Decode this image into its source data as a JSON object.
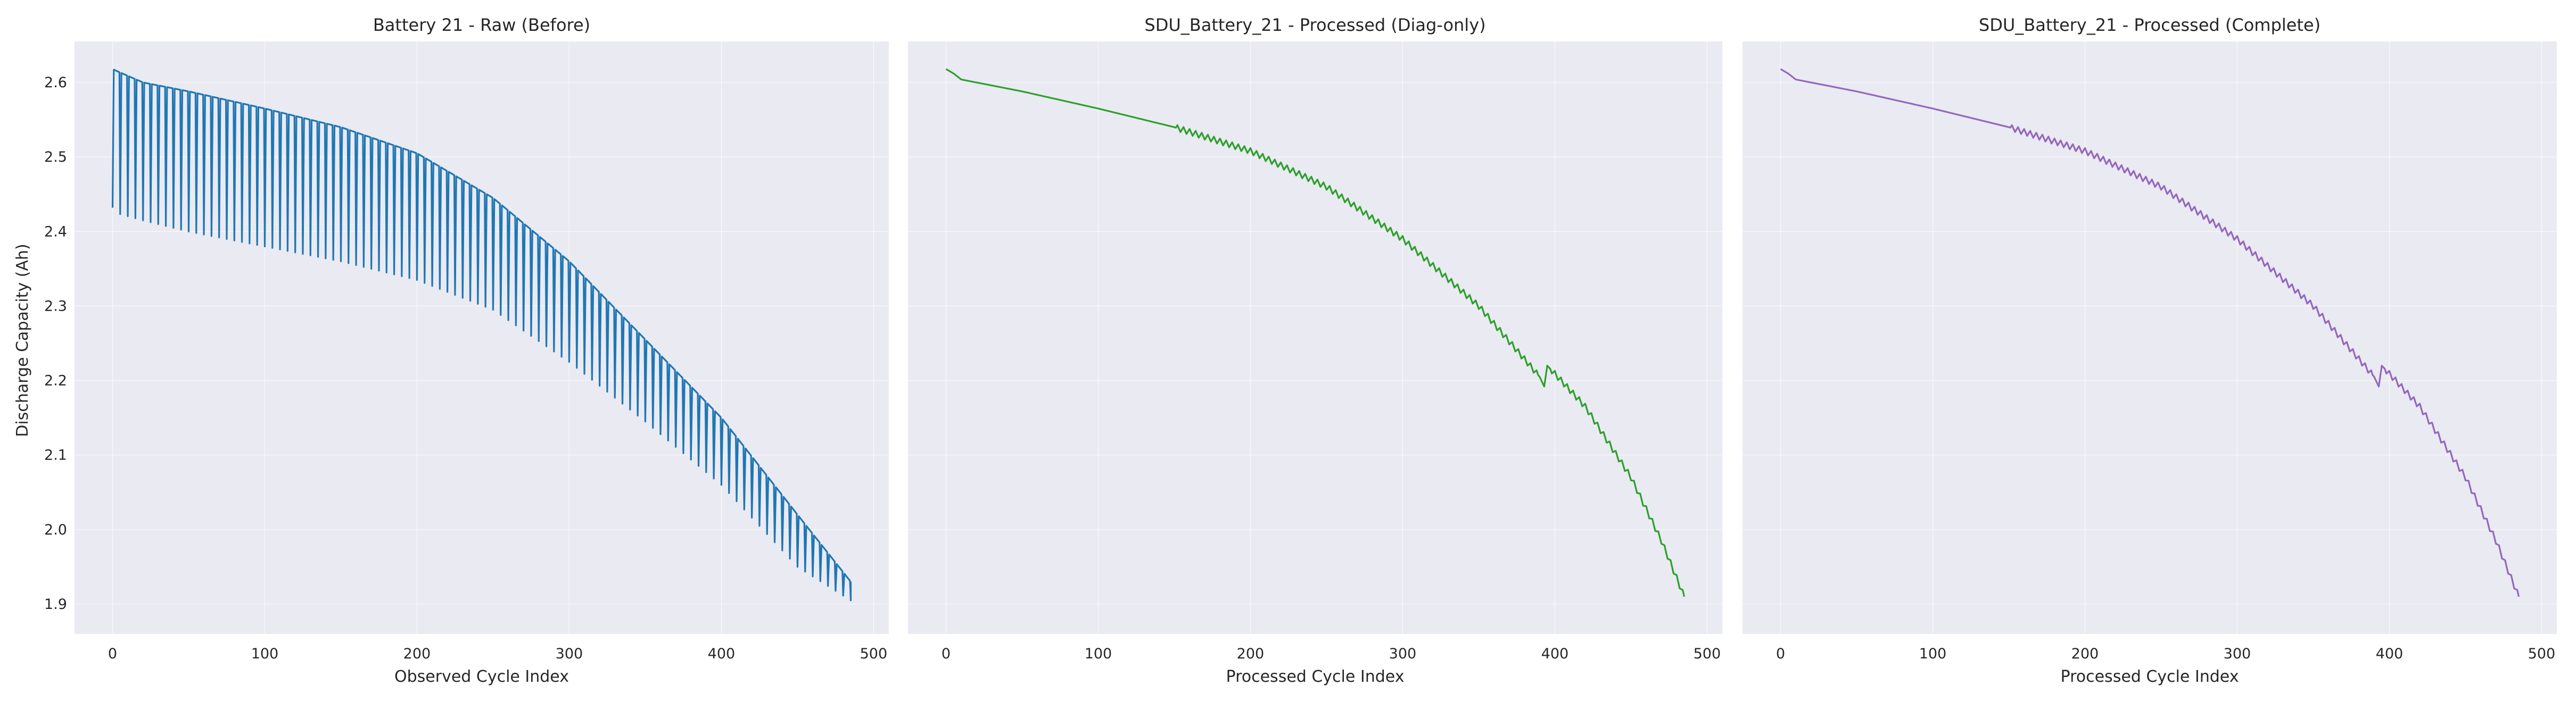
{
  "figure": {
    "shared_ylabel": "Discharge Capacity (Ah)"
  },
  "chart_data": [
    {
      "type": "line",
      "title": "Battery 21 - Raw (Before)",
      "xlabel": "Observed Cycle Index",
      "ylabel": "Discharge Capacity (Ah)",
      "xlim": [
        -25,
        510
      ],
      "ylim": [
        1.86,
        2.655
      ],
      "xticks": [
        0,
        100,
        200,
        300,
        400,
        500
      ],
      "yticks": [
        1.9,
        2.0,
        2.1,
        2.2,
        2.3,
        2.4,
        2.5,
        2.6
      ],
      "grid": true,
      "line_color": "#1f77b4",
      "pattern": "sawtooth",
      "x": [
        0,
        2,
        20,
        50,
        100,
        150,
        200,
        250,
        300,
        350,
        400,
        450,
        485
      ],
      "upper_envelope": [
        2.618,
        2.616,
        2.6,
        2.588,
        2.565,
        2.54,
        2.505,
        2.445,
        2.36,
        2.255,
        2.15,
        2.02,
        1.93
      ],
      "lower_envelope": [
        2.432,
        2.425,
        2.415,
        2.4,
        2.38,
        2.36,
        2.335,
        2.295,
        2.225,
        2.145,
        2.06,
        1.95,
        1.905
      ],
      "period_cycles": 5
    },
    {
      "type": "line",
      "title": "SDU_Battery_21 - Processed (Diag-only)",
      "xlabel": "Processed Cycle Index",
      "ylabel": "",
      "xlim": [
        -25,
        510
      ],
      "ylim": [
        1.86,
        2.655
      ],
      "xticks": [
        0,
        100,
        200,
        300,
        400,
        500
      ],
      "yticks": [
        1.9,
        2.0,
        2.1,
        2.2,
        2.3,
        2.4,
        2.5,
        2.6
      ],
      "grid": true,
      "line_color": "#2ca02c",
      "x": [
        0,
        5,
        10,
        20,
        50,
        100,
        150,
        200,
        250,
        300,
        350,
        390,
        393,
        395,
        420,
        450,
        470,
        485
      ],
      "y": [
        2.618,
        2.612,
        2.604,
        2.6,
        2.588,
        2.565,
        2.54,
        2.508,
        2.46,
        2.39,
        2.3,
        2.205,
        2.192,
        2.22,
        2.165,
        2.07,
        1.985,
        1.91
      ]
    },
    {
      "type": "line",
      "title": "SDU_Battery_21 - Processed (Complete)",
      "xlabel": "Processed Cycle Index",
      "ylabel": "",
      "xlim": [
        -25,
        510
      ],
      "ylim": [
        1.86,
        2.655
      ],
      "xticks": [
        0,
        100,
        200,
        300,
        400,
        500
      ],
      "yticks": [
        1.9,
        2.0,
        2.1,
        2.2,
        2.3,
        2.4,
        2.5,
        2.6
      ],
      "grid": true,
      "line_color": "#9467bd",
      "x": [
        0,
        5,
        10,
        20,
        50,
        100,
        150,
        200,
        250,
        300,
        350,
        390,
        393,
        395,
        420,
        450,
        470,
        485
      ],
      "y": [
        2.618,
        2.612,
        2.604,
        2.6,
        2.588,
        2.565,
        2.54,
        2.508,
        2.46,
        2.39,
        2.3,
        2.205,
        2.192,
        2.22,
        2.165,
        2.07,
        1.985,
        1.91
      ]
    }
  ]
}
